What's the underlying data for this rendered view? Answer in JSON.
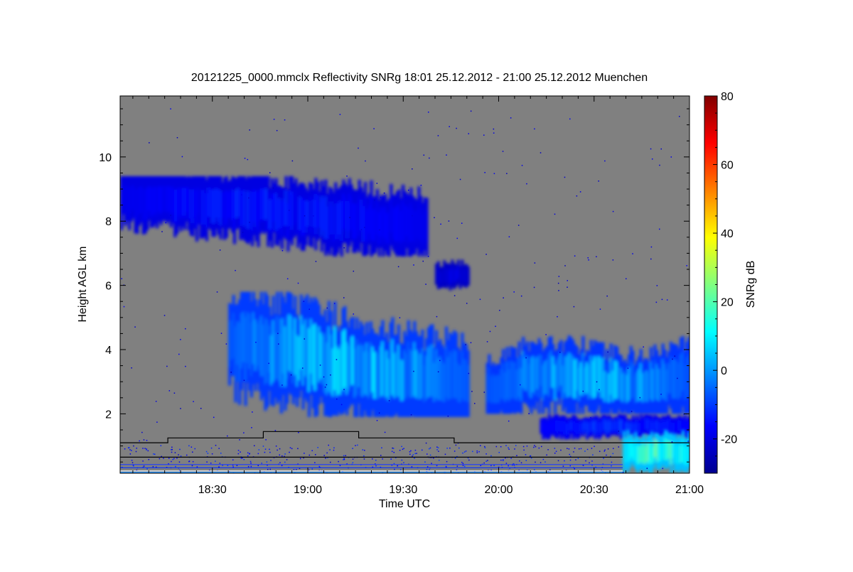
{
  "chart_data": {
    "type": "heatmap",
    "title": "20121225_0000.mmclx Reflectivity SNRg   18:01 25.12.2012 - 21:00 25.12.2012 Muenchen",
    "xlabel": "Time UTC",
    "ylabel": "Height AGL km",
    "x_tick_labels": [
      "18:30",
      "19:00",
      "19:30",
      "20:00",
      "20:30",
      "21:00"
    ],
    "x_ticks_min": [
      30,
      60,
      90,
      120,
      150,
      180
    ],
    "x_range_min": [
      1,
      180
    ],
    "y_tick_labels": [
      "2",
      "4",
      "6",
      "8",
      "10"
    ],
    "y_ticks_km": [
      2,
      4,
      6,
      8,
      10
    ],
    "y_range_km": [
      0.15,
      11.9
    ],
    "background_color": "#808080",
    "colorbar": {
      "label": "SNRg dB",
      "tick_labels": [
        "-20",
        "0",
        "20",
        "40",
        "60",
        "80"
      ],
      "ticks": [
        -20,
        0,
        20,
        40,
        60,
        80
      ],
      "range": [
        -30,
        80
      ],
      "colors": [
        "#00008f",
        "#0000ff",
        "#0080ff",
        "#00ffff",
        "#80ff80",
        "#ffff00",
        "#ff8000",
        "#ff0000",
        "#800000"
      ]
    },
    "features": [
      {
        "name": "upper cirrus layer",
        "time_min": [
          1,
          97
        ],
        "height_km": [
          6.9,
          9.4
        ],
        "snr_db": [
          -22,
          -8
        ]
      },
      {
        "name": "mid-level layer",
        "time_min": [
          35,
          110
        ],
        "height_km": [
          1.9,
          5.8
        ],
        "snr_db": [
          -15,
          18
        ]
      },
      {
        "name": "isolated echo",
        "time_min": [
          100,
          110
        ],
        "height_km": [
          5.8,
          6.8
        ],
        "snr_db": [
          -25,
          -15
        ]
      },
      {
        "name": "late mid-level layer",
        "time_min": [
          116,
          180
        ],
        "height_km": [
          2.0,
          4.6
        ],
        "snr_db": [
          -15,
          15
        ]
      },
      {
        "name": "low layer",
        "time_min": [
          133,
          180
        ],
        "height_km": [
          1.2,
          2.0
        ],
        "snr_db": [
          -20,
          -5
        ]
      },
      {
        "name": "precipitation",
        "time_min": [
          159,
          180
        ],
        "height_km": [
          0.15,
          1.5
        ],
        "snr_db": [
          0,
          30
        ]
      }
    ],
    "height_trace_km": [
      [
        1,
        1.1
      ],
      [
        16,
        1.1
      ],
      [
        16,
        1.25
      ],
      [
        46,
        1.25
      ],
      [
        46,
        1.45
      ],
      [
        76,
        1.45
      ],
      [
        76,
        1.25
      ],
      [
        106,
        1.25
      ],
      [
        106,
        1.1
      ],
      [
        180,
        1.1
      ]
    ],
    "grid": false,
    "legend": "colorbar right"
  }
}
